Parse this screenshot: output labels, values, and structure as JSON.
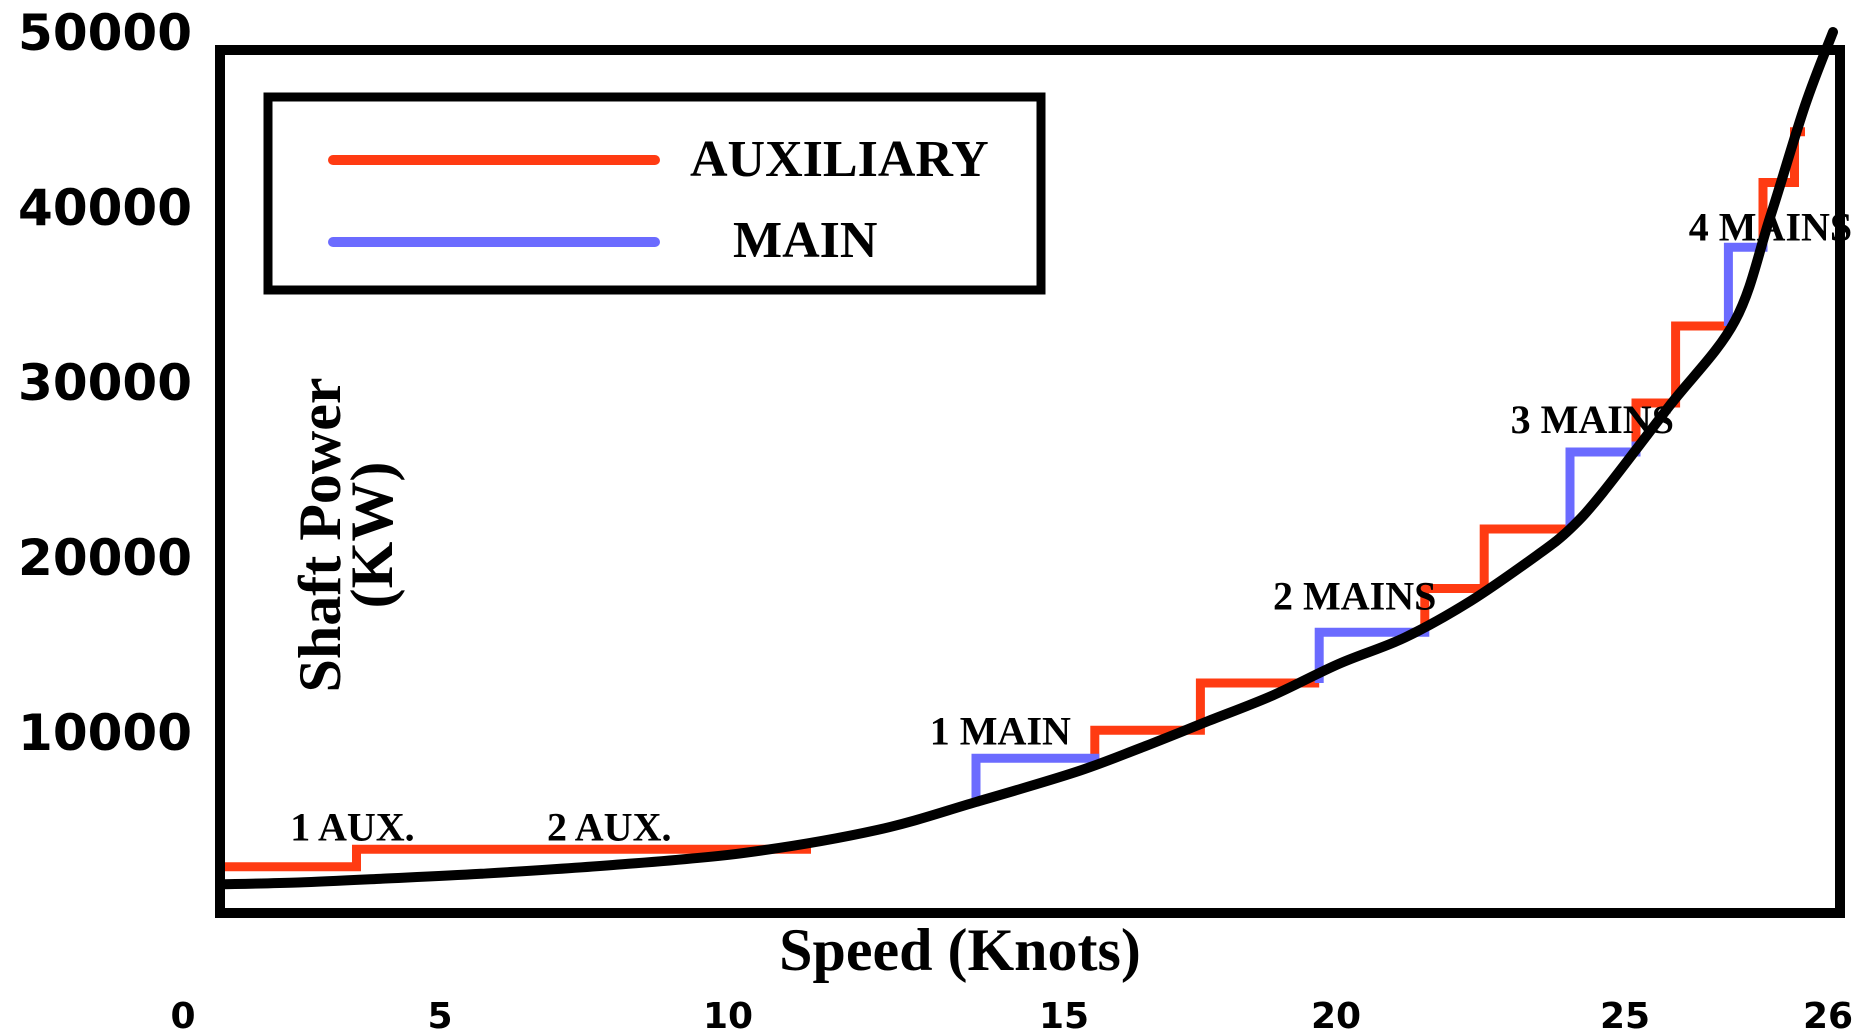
{
  "chart_data": {
    "type": "line",
    "xlabel": "Speed (Knots)",
    "ylabel_line1": "Shaft Power",
    "ylabel_line2": "(KW)",
    "x_ticks": [
      0,
      5,
      10,
      15,
      20,
      25,
      26
    ],
    "y_ticks": [
      10000,
      20000,
      30000,
      40000,
      50000
    ],
    "legend": {
      "placement": "top-left",
      "entries": [
        {
          "label": "AUXILIARY",
          "color": "#ff3b12"
        },
        {
          "label": "MAIN",
          "color": "#6b6bff"
        }
      ]
    },
    "series": [
      {
        "name": "AUXILIARY",
        "color": "#ff3b12",
        "segments": [
          [
            [
              0,
              2300
            ],
            [
              3.5,
              2300
            ],
            [
              3.5,
              3300
            ],
            [
              11,
              3300
            ]
          ],
          [
            [
              15.3,
              8100
            ],
            [
              15.3,
              10100
            ],
            [
              16.9,
              10100
            ],
            [
              16.9,
              12800
            ],
            [
              18.7,
              12800
            ]
          ],
          [
            [
              20.3,
              15900
            ],
            [
              20.3,
              18200
            ],
            [
              21.2,
              18200
            ],
            [
              21.2,
              21600
            ],
            [
              22.5,
              21600
            ]
          ],
          [
            [
              23.5,
              26600
            ],
            [
              23.5,
              28800
            ],
            [
              24.1,
              28800
            ],
            [
              24.1,
              33200
            ],
            [
              24.9,
              33200
            ]
          ],
          [
            [
              25.8,
              38000
            ],
            [
              25.8,
              41400
            ],
            [
              26.7,
              41400
            ],
            [
              26.7,
              44300
            ],
            [
              27.0,
              44300
            ]
          ]
        ]
      },
      {
        "name": "MAIN",
        "color": "#6b6bff",
        "segments": [
          [
            [
              13.5,
              6000
            ],
            [
              13.5,
              8500
            ],
            [
              15.3,
              8500
            ],
            [
              15.3,
              8100
            ]
          ],
          [
            [
              18.7,
              12800
            ],
            [
              18.7,
              15700
            ],
            [
              20.3,
              15700
            ],
            [
              20.3,
              15900
            ]
          ],
          [
            [
              22.5,
              21600
            ],
            [
              22.5,
              26000
            ],
            [
              23.5,
              26000
            ],
            [
              23.5,
              26600
            ]
          ],
          [
            [
              24.9,
              33200
            ],
            [
              24.9,
              37700
            ],
            [
              25.8,
              37700
            ],
            [
              25.8,
              38000
            ]
          ]
        ]
      },
      {
        "name": "",
        "color": "#000000",
        "points": [
          [
            0,
            1300
          ],
          [
            2,
            1400
          ],
          [
            4,
            1600
          ],
          [
            6,
            1900
          ],
          [
            8,
            2400
          ],
          [
            10,
            3100
          ],
          [
            12,
            4400
          ],
          [
            13.5,
            6000
          ],
          [
            15,
            7700
          ],
          [
            16,
            9100
          ],
          [
            17,
            10600
          ],
          [
            18,
            12100
          ],
          [
            19,
            13900
          ],
          [
            20,
            15400
          ],
          [
            21,
            17500
          ],
          [
            22,
            20100
          ],
          [
            22.5,
            21600
          ],
          [
            23,
            23700
          ],
          [
            24,
            28600
          ],
          [
            25,
            33500
          ],
          [
            26,
            39400
          ],
          [
            27,
            45800
          ],
          [
            27.8,
            50000
          ]
        ]
      }
    ],
    "annotations": [
      {
        "text": "1 AUX.",
        "x": 1.8,
        "y": 3800
      },
      {
        "text": "2 AUX.",
        "x": 7.0,
        "y": 3800
      },
      {
        "text": "1 MAIN",
        "x": 12.8,
        "y": 9300
      },
      {
        "text": "2 MAINS",
        "x": 18.0,
        "y": 17000
      },
      {
        "text": "3 MAINS",
        "x": 21.6,
        "y": 27100
      },
      {
        "text": "4 MAINS",
        "x": 24.3,
        "y": 38100
      }
    ]
  }
}
